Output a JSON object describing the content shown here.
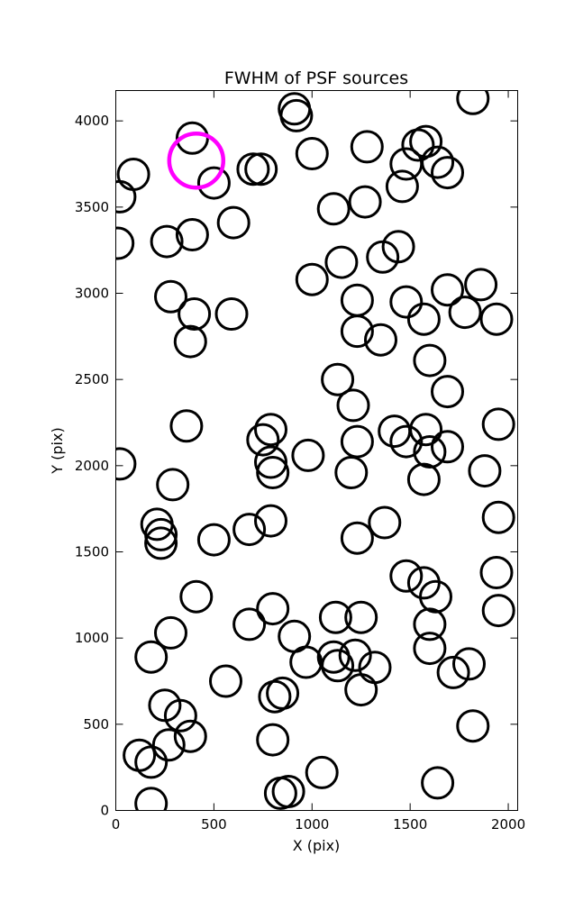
{
  "chart_data": {
    "type": "scatter",
    "title": "FWHM of PSF sources",
    "xlabel": "X (pix)",
    "ylabel": "Y (pix)",
    "xlim": [
      0,
      2048
    ],
    "ylim": [
      0,
      4176
    ],
    "xticks": [
      0,
      500,
      1000,
      1500,
      2000
    ],
    "yticks": [
      0,
      500,
      1000,
      1500,
      2000,
      2500,
      3000,
      3500,
      4000
    ],
    "grid": false,
    "marker": "open-circle",
    "series": [
      {
        "color": "#000000",
        "points": [
          [
            910,
            4070
          ],
          [
            920,
            4030
          ],
          [
            1820,
            4130
          ],
          [
            390,
            3900
          ],
          [
            1000,
            3810
          ],
          [
            1280,
            3850
          ],
          [
            1580,
            3880
          ],
          [
            1540,
            3860
          ],
          [
            90,
            3690
          ],
          [
            700,
            3720
          ],
          [
            740,
            3720
          ],
          [
            1480,
            3750
          ],
          [
            1640,
            3760
          ],
          [
            1690,
            3700
          ],
          [
            500,
            3640
          ],
          [
            1460,
            3620
          ],
          [
            20,
            3560
          ],
          [
            1110,
            3490
          ],
          [
            1270,
            3530
          ],
          [
            600,
            3410
          ],
          [
            390,
            3340
          ],
          [
            260,
            3300
          ],
          [
            10,
            3290
          ],
          [
            1440,
            3270
          ],
          [
            1150,
            3180
          ],
          [
            1360,
            3210
          ],
          [
            1000,
            3080
          ],
          [
            1690,
            3020
          ],
          [
            1860,
            3050
          ],
          [
            280,
            2980
          ],
          [
            1230,
            2960
          ],
          [
            1480,
            2950
          ],
          [
            400,
            2880
          ],
          [
            590,
            2880
          ],
          [
            1570,
            2850
          ],
          [
            1780,
            2890
          ],
          [
            1940,
            2850
          ],
          [
            1230,
            2780
          ],
          [
            1350,
            2730
          ],
          [
            380,
            2720
          ],
          [
            1600,
            2610
          ],
          [
            1130,
            2500
          ],
          [
            1690,
            2430
          ],
          [
            1210,
            2350
          ],
          [
            360,
            2230
          ],
          [
            790,
            2210
          ],
          [
            1420,
            2200
          ],
          [
            1580,
            2210
          ],
          [
            1950,
            2240
          ],
          [
            750,
            2150
          ],
          [
            1230,
            2140
          ],
          [
            1480,
            2140
          ],
          [
            1600,
            2080
          ],
          [
            1690,
            2110
          ],
          [
            20,
            2010
          ],
          [
            790,
            2020
          ],
          [
            980,
            2060
          ],
          [
            800,
            1960
          ],
          [
            1200,
            1960
          ],
          [
            1570,
            1920
          ],
          [
            1880,
            1970
          ],
          [
            290,
            1890
          ],
          [
            210,
            1660
          ],
          [
            230,
            1600
          ],
          [
            230,
            1550
          ],
          [
            500,
            1570
          ],
          [
            680,
            1630
          ],
          [
            790,
            1680
          ],
          [
            1230,
            1580
          ],
          [
            1370,
            1670
          ],
          [
            1950,
            1700
          ],
          [
            410,
            1240
          ],
          [
            1480,
            1360
          ],
          [
            1570,
            1320
          ],
          [
            1630,
            1240
          ],
          [
            1940,
            1380
          ],
          [
            280,
            1030
          ],
          [
            680,
            1080
          ],
          [
            800,
            1170
          ],
          [
            1120,
            1120
          ],
          [
            1250,
            1120
          ],
          [
            1600,
            1080
          ],
          [
            1950,
            1160
          ],
          [
            180,
            890
          ],
          [
            910,
            1010
          ],
          [
            970,
            860
          ],
          [
            1110,
            890
          ],
          [
            1130,
            840
          ],
          [
            1220,
            900
          ],
          [
            1320,
            830
          ],
          [
            1600,
            940
          ],
          [
            1720,
            800
          ],
          [
            1800,
            850
          ],
          [
            560,
            750
          ],
          [
            810,
            660
          ],
          [
            850,
            680
          ],
          [
            1250,
            700
          ],
          [
            250,
            610
          ],
          [
            330,
            550
          ],
          [
            1820,
            490
          ],
          [
            270,
            380
          ],
          [
            380,
            430
          ],
          [
            800,
            410
          ],
          [
            120,
            320
          ],
          [
            180,
            280
          ],
          [
            1050,
            220
          ],
          [
            840,
            100
          ],
          [
            880,
            110
          ],
          [
            1640,
            160
          ],
          [
            180,
            40
          ]
        ]
      },
      {
        "color": "#ff00ff",
        "points": [
          [
            410,
            3770
          ]
        ]
      }
    ]
  }
}
